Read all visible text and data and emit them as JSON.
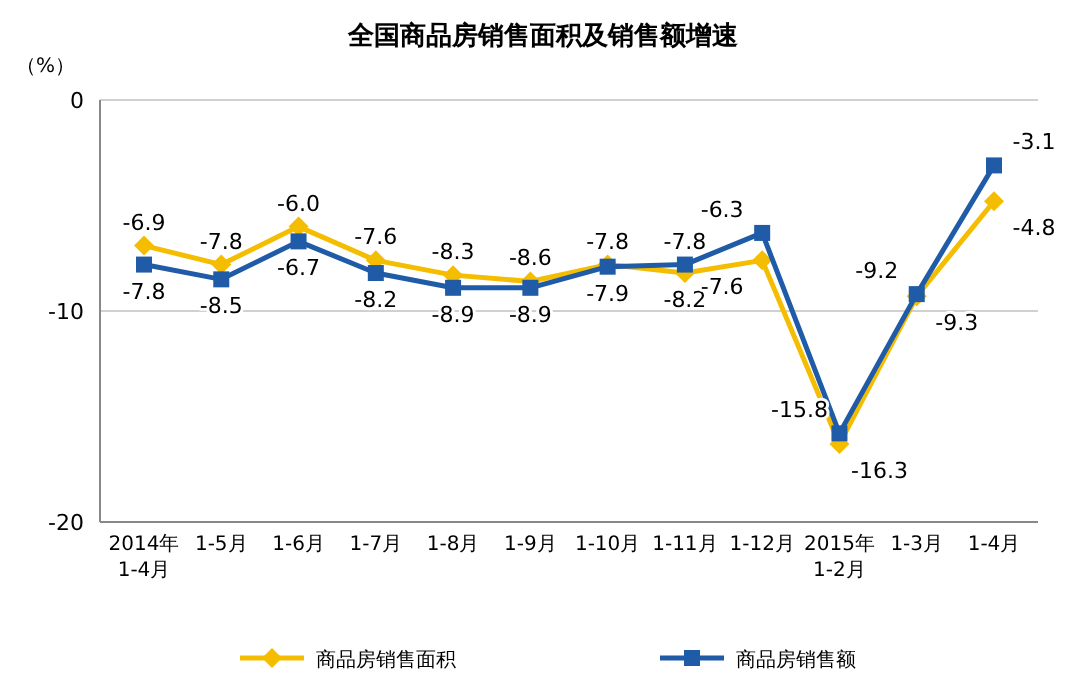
{
  "chart_data": {
    "type": "line",
    "title": "全国商品房销售面积及销售额增速",
    "ylabel": "（%）",
    "categories": [
      "2014年\n1-4月",
      "1-5月",
      "1-6月",
      "1-7月",
      "1-8月",
      "1-9月",
      "1-10月",
      "1-11月",
      "1-12月",
      "2015年\n1-2月",
      "1-3月",
      "1-4月"
    ],
    "series": [
      {
        "name": "商品房销售面积",
        "color": "#f5bd00",
        "marker": "diamond",
        "values": [
          -6.9,
          -7.8,
          -6.0,
          -7.6,
          -8.3,
          -8.6,
          -7.8,
          -8.2,
          -7.6,
          -16.3,
          -9.3,
          -4.8
        ],
        "value_labels": [
          "-6.9",
          "-7.8",
          "-6.0",
          "-7.6",
          "-8.3",
          "-8.6",
          "-7.8",
          "-8.2",
          "-7.6",
          "-16.3",
          "-9.3",
          "-4.8"
        ]
      },
      {
        "name": "商品房销售额",
        "color": "#1f5ba6",
        "marker": "square",
        "values": [
          -7.8,
          -8.5,
          -6.7,
          -8.2,
          -8.9,
          -8.9,
          -7.9,
          -7.8,
          -6.3,
          -15.8,
          -9.2,
          -3.1
        ],
        "value_labels": [
          "-7.8",
          "-8.5",
          "-6.7",
          "-8.2",
          "-8.9",
          "-8.9",
          "-7.9",
          "-7.8",
          "-6.3",
          "-15.8",
          "-9.2",
          "-3.1"
        ]
      }
    ],
    "ylim": [
      -20,
      0
    ],
    "yticks": [
      0,
      -10,
      -20
    ],
    "grid": "y",
    "legend": "bottom"
  }
}
